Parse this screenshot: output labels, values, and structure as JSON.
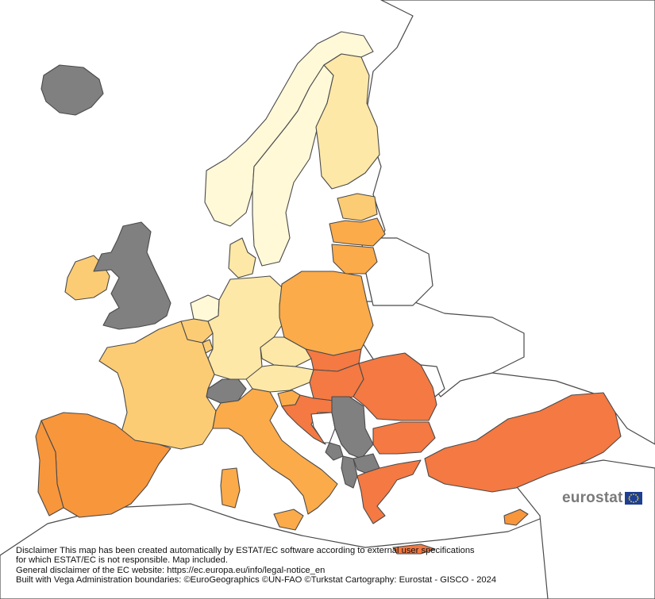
{
  "map": {
    "colors": {
      "no_data": "#808080",
      "level_1": "#fff9d8",
      "level_2": "#fde8a8",
      "level_3": "#fccc75",
      "level_4": "#fbab4a",
      "level_5": "#f8963c",
      "level_6": "#f47942",
      "non_member": "#ffffff",
      "border": "#4a4a4a"
    }
  },
  "disclaimer": {
    "line1": "Disclaimer This map has been created automatically by ESTAT/EC software according to external user specifications",
    "line2": "for which ESTAT/EC is not responsible. Map included.",
    "line3": "General disclaimer of the EC website: https://ec.europa.eu/info/legal-notice_en",
    "line4": "Built with Vega Administration boundaries: ©EuroGeographics ©UN-FAO ©Turkstat Cartography: Eurostat - GISCO - 2024"
  },
  "logo": {
    "text": "eurostat",
    "icon": "eu-flag-icon"
  }
}
